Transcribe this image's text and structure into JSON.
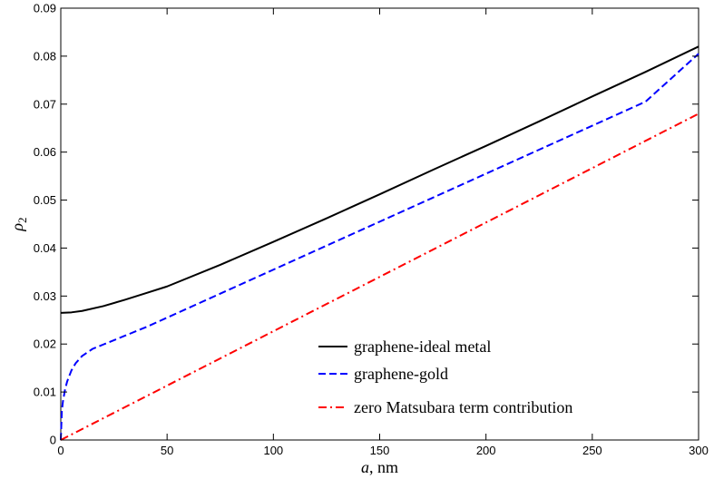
{
  "chart_data": {
    "type": "line",
    "xlabel": "a, nm",
    "ylabel": "ρ2",
    "xlim": [
      0,
      300
    ],
    "ylim": [
      0,
      0.09
    ],
    "xticks": [
      0,
      50,
      100,
      150,
      200,
      250,
      300
    ],
    "yticks": [
      0,
      0.01,
      0.02,
      0.03,
      0.04,
      0.05,
      0.06,
      0.07,
      0.08,
      0.09
    ],
    "xtick_labels": [
      "0",
      "50",
      "100",
      "150",
      "200",
      "250",
      "300"
    ],
    "ytick_labels": [
      "0",
      "0.01",
      "0.02",
      "0.03",
      "0.04",
      "0.05",
      "0.06",
      "0.07",
      "0.08",
      "0.09"
    ],
    "grid": false,
    "legend_position": "bottom-right",
    "series": [
      {
        "name": "graphene-ideal metal",
        "color": "#000000",
        "style": "solid",
        "x": [
          0,
          5,
          10,
          20,
          30,
          40,
          50,
          75,
          100,
          125,
          150,
          175,
          200,
          225,
          250,
          275,
          300
        ],
        "y": [
          0.0265,
          0.0266,
          0.0269,
          0.0279,
          0.0292,
          0.0306,
          0.032,
          0.0365,
          0.0413,
          0.0462,
          0.0512,
          0.0563,
          0.0613,
          0.0664,
          0.0716,
          0.0767,
          0.082
        ]
      },
      {
        "name": "graphene-gold",
        "color": "#0000ff",
        "style": "dashed",
        "x": [
          0,
          0.5,
          1,
          2,
          3,
          5,
          7,
          10,
          15,
          20,
          30,
          40,
          50,
          75,
          100,
          125,
          150,
          175,
          200,
          225,
          250,
          275,
          300
        ],
        "y": [
          0,
          0.006,
          0.008,
          0.0105,
          0.0122,
          0.0145,
          0.016,
          0.0175,
          0.019,
          0.0199,
          0.0217,
          0.0235,
          0.0255,
          0.0305,
          0.0355,
          0.0405,
          0.0455,
          0.0505,
          0.0555,
          0.0605,
          0.0655,
          0.0705,
          0.0805
        ]
      },
      {
        "name": "zero Matsubara term contribution",
        "color": "#ff0000",
        "style": "dashdot",
        "x": [
          0,
          300
        ],
        "y": [
          0,
          0.068
        ]
      }
    ]
  }
}
